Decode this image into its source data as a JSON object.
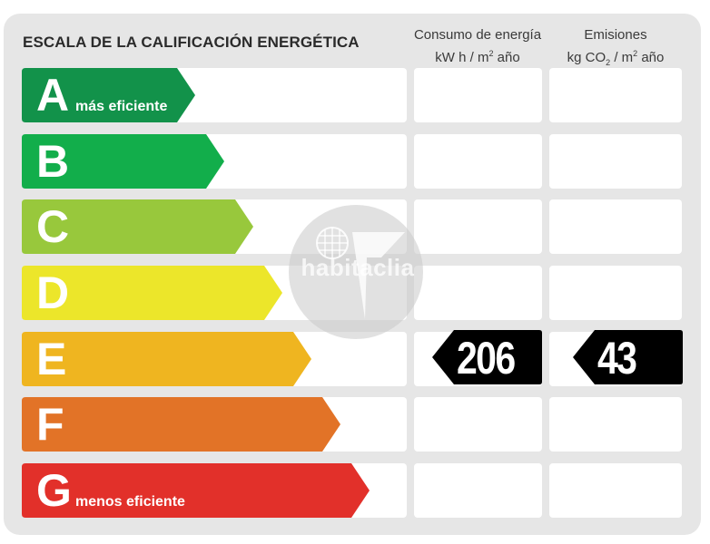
{
  "header": {
    "title": "ESCALA DE LA CALIFICACIÓN ENERGÉTICA",
    "consumption": {
      "line1": "Consumo de energía",
      "unit_prefix": "kW h  / m",
      "unit_sup": "2",
      "unit_suffix": " año"
    },
    "emissions": {
      "line1": "Emisiones",
      "unit_prefix": "kg CO",
      "unit_sub": "2",
      "unit_mid": "  / m",
      "unit_sup": "2",
      "unit_suffix": " año"
    }
  },
  "ratings": [
    {
      "letter": "A",
      "label": "más eficiente",
      "color": "#12924a"
    },
    {
      "letter": "B",
      "label": "",
      "color": "#12ae4b"
    },
    {
      "letter": "C",
      "label": "",
      "color": "#98c83c"
    },
    {
      "letter": "D",
      "label": "",
      "color": "#ece62a"
    },
    {
      "letter": "E",
      "label": "",
      "color": "#efb520"
    },
    {
      "letter": "F",
      "label": "",
      "color": "#e27327"
    },
    {
      "letter": "G",
      "label": "menos eficiente",
      "color": "#e2302a"
    }
  ],
  "result": {
    "rating_letter": "E",
    "consumption_value": "206",
    "emissions_value": "43"
  },
  "watermark": {
    "text": "habitaclia"
  },
  "chart_data": {
    "type": "table",
    "title": "ESCALA DE LA CALIFICACIÓN ENERGÉTICA",
    "categories": [
      "A",
      "B",
      "C",
      "D",
      "E",
      "F",
      "G"
    ],
    "category_notes": {
      "A": "más eficiente",
      "G": "menos eficiente"
    },
    "columns": [
      "Consumo de energía kW h / m² año",
      "Emisiones kg CO₂ / m² año"
    ],
    "series": [
      {
        "name": "Consumo de energía (kW h / m² año)",
        "rating": "E",
        "value": 206
      },
      {
        "name": "Emisiones (kg CO₂ / m² año)",
        "rating": "E",
        "value": 43
      }
    ]
  }
}
